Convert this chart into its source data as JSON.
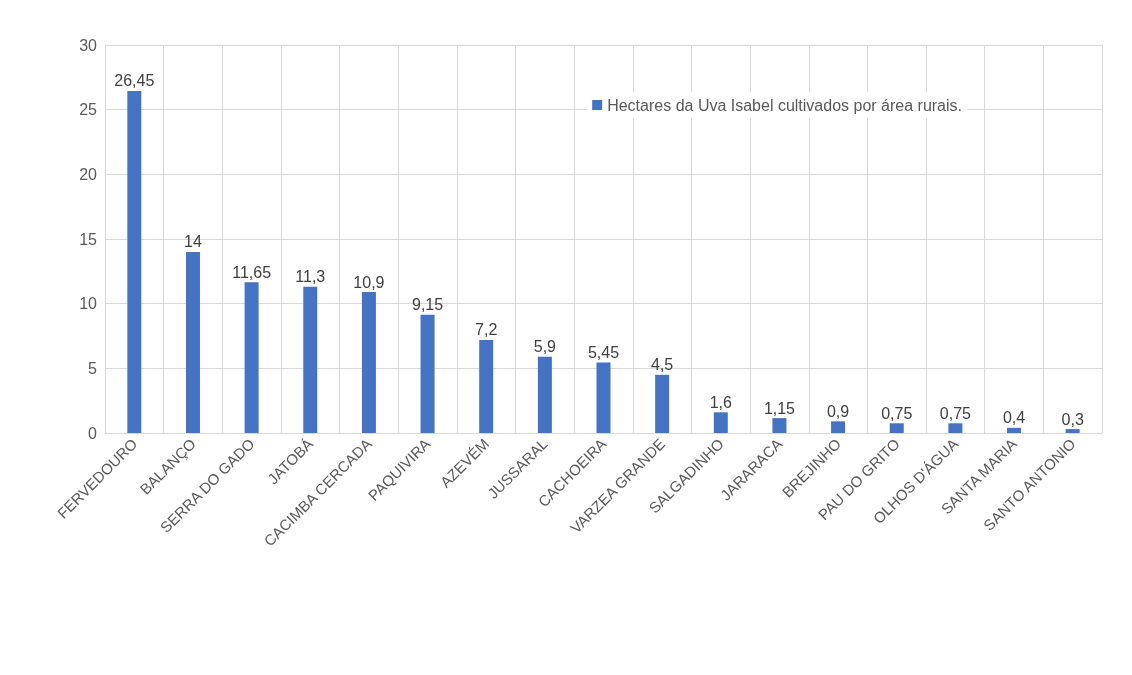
{
  "chart_data": {
    "type": "bar",
    "categories": [
      "FERVEDOURO",
      "BALANÇO",
      "SERRA DO GADO",
      "JATOBÁ",
      "CACIMBA CERCADA",
      "PAQUIVIRA",
      "AZEVÉM",
      "JUSSARAL",
      "CACHOEIRA",
      "VARZEA GRANDE",
      "SALGADINHO",
      "JARARACA",
      "BREJINHO",
      "PAU DO GRITO",
      "OLHOS D'ÁGUA",
      "SANTA MARIA",
      "SANTO ANTONIO"
    ],
    "series": [
      {
        "name": "Hectares da Uva Isabel cultivados por área rurais.",
        "color": "#4472c4",
        "values": [
          26.45,
          14,
          11.65,
          11.3,
          10.9,
          9.15,
          7.2,
          5.9,
          5.45,
          4.5,
          1.6,
          1.15,
          0.9,
          0.75,
          0.75,
          0.4,
          0.3
        ],
        "value_labels": [
          "26,45",
          "14",
          "11,65",
          "11,3",
          "10,9",
          "9,15",
          "7,2",
          "5,9",
          "5,45",
          "4,5",
          "1,6",
          "1,15",
          "0,9",
          "0,75",
          "0,75",
          "0,4",
          "0,3"
        ]
      }
    ],
    "ylim": [
      0,
      30
    ],
    "yticks": [
      0,
      5,
      10,
      15,
      20,
      25,
      30
    ],
    "grid": true,
    "legend": "top right"
  }
}
